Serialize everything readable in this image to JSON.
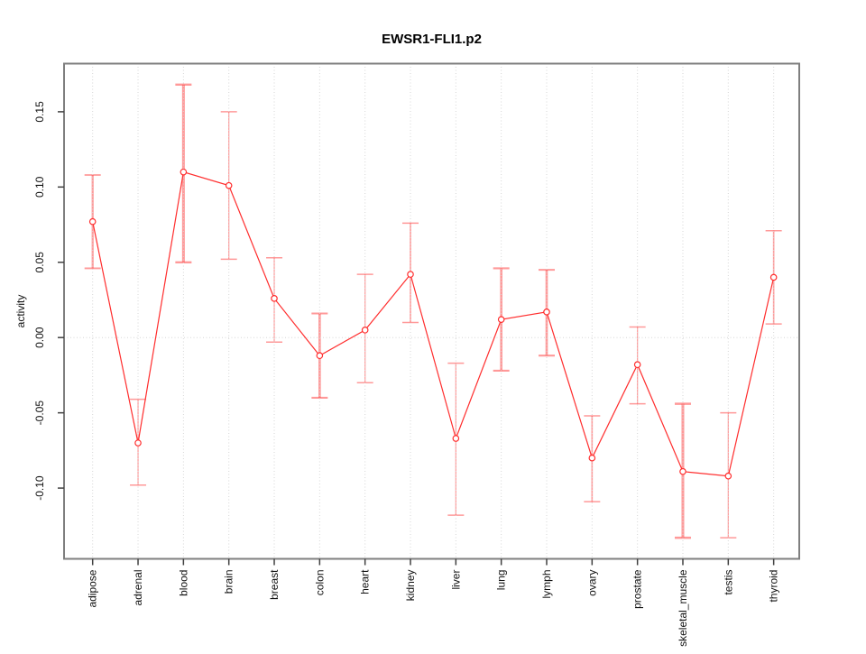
{
  "chart_data": {
    "type": "line",
    "title": "EWSR1-FLI1.p2",
    "xlabel": "",
    "ylabel": "activity",
    "legend": "none",
    "grid": "dotted vertical line per category, dotted horizontal line at 0",
    "categories": [
      "adipose",
      "adrenal",
      "blood",
      "brain",
      "breast",
      "colon",
      "heart",
      "kidney",
      "liver",
      "lung",
      "lymph",
      "ovary",
      "prostate",
      "skeletal_muscle",
      "testis",
      "thyroid"
    ],
    "values": [
      0.077,
      -0.07,
      0.11,
      0.101,
      0.026,
      -0.012,
      0.005,
      0.042,
      -0.067,
      0.012,
      0.017,
      -0.08,
      -0.018,
      -0.089,
      -0.092,
      0.04
    ],
    "error_low": [
      0.046,
      -0.098,
      0.05,
      0.052,
      -0.003,
      -0.04,
      -0.03,
      0.01,
      -0.118,
      -0.022,
      -0.012,
      -0.109,
      -0.044,
      -0.133,
      -0.133,
      0.009
    ],
    "error_high": [
      0.108,
      -0.041,
      0.168,
      0.15,
      0.053,
      0.016,
      0.042,
      0.076,
      -0.017,
      0.046,
      0.045,
      -0.052,
      0.007,
      -0.044,
      -0.05,
      0.071
    ],
    "errorbar_weights": [
      2.2,
      1.2,
      3.0,
      1.2,
      1.2,
      2.6,
      1.2,
      1.6,
      1.2,
      2.6,
      2.6,
      1.6,
      1.2,
      3.0,
      1.2,
      1.6
    ],
    "yticks": [
      -0.1,
      -0.05,
      0.0,
      0.05,
      0.1,
      0.15
    ],
    "ylim": [
      -0.147,
      0.182
    ],
    "colors": {
      "series": "#ff2d2d",
      "errorbar": "rgba(255,70,70,0.55)",
      "grid": "#d6d6d6",
      "frame": "#7f7f7f",
      "tick": "#404040",
      "text": "#111111"
    }
  }
}
